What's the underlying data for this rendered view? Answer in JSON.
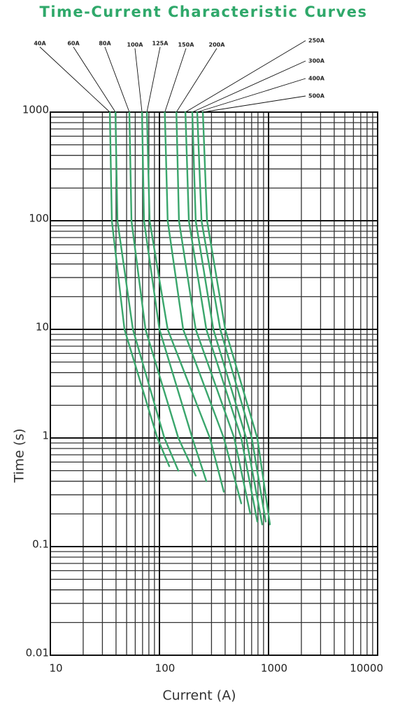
{
  "chart_data": {
    "type": "line",
    "title": "Time-Current Characteristic Curves",
    "x_label": "Current (A)",
    "y_label": "Time (s)",
    "x_scale": "log",
    "y_scale": "log",
    "grid": true,
    "minor_grid": true,
    "xlim": [
      10,
      10000
    ],
    "ylim": [
      0.01,
      1000
    ],
    "xticks": [
      10,
      100,
      1000,
      10000
    ],
    "yticks": [
      1000,
      100,
      10,
      1,
      0.1,
      0.01
    ],
    "series": [
      {
        "name": "40A",
        "color": "#3aa66c",
        "x": [
          35.1,
          36.6,
          47.8,
          95.7,
          123
        ],
        "values": [
          1000,
          100,
          10,
          1,
          0.55
        ]
      },
      {
        "name": "60A",
        "color": "#3aa66c",
        "x": [
          39.5,
          41.2,
          57.1,
          111,
          149
        ],
        "values": [
          1000,
          100,
          10,
          1,
          0.5
        ]
      },
      {
        "name": "80A",
        "color": "#3aa66c",
        "x": [
          53.0,
          55.4,
          74.5,
          149,
          215
        ],
        "values": [
          1000,
          100,
          10,
          1,
          0.45
        ]
      },
      {
        "name": "100A",
        "color": "#3aa66c",
        "x": [
          69.2,
          72.2,
          100,
          200,
          269
        ],
        "values": [
          1000,
          100,
          10,
          1,
          0.4
        ]
      },
      {
        "name": "125A",
        "color": "#3aa66c",
        "x": [
          76.7,
          81.3,
          119,
          290,
          389
        ],
        "values": [
          1000,
          100,
          10,
          1,
          0.32
        ]
      },
      {
        "name": "150A",
        "color": "#3aa66c",
        "x": [
          112,
          119,
          165,
          389,
          562
        ],
        "values": [
          1000,
          100,
          10,
          1,
          0.25
        ]
      },
      {
        "name": "200A",
        "color": "#3aa66c",
        "x": [
          143,
          151,
          215,
          485,
          681
        ],
        "values": [
          1000,
          100,
          10,
          1,
          0.2
        ]
      },
      {
        "name": "250A",
        "color": "#3aa66c",
        "x": [
          173,
          186,
          269,
          562,
          789
        ],
        "values": [
          1000,
          100,
          10,
          1,
          0.17
        ]
      },
      {
        "name": "300A",
        "color": "#3aa66c",
        "x": [
          200,
          215,
          312,
          624,
          875
        ],
        "values": [
          1000,
          100,
          10,
          1,
          0.16
        ]
      },
      {
        "name": "400A",
        "color": "#3aa66c",
        "x": [
          222,
          243,
          361,
          702,
          942
        ],
        "values": [
          1000,
          100,
          10,
          1,
          0.17
        ]
      },
      {
        "name": "500A",
        "color": "#3aa66c",
        "x": [
          250,
          273,
          401,
          789,
          1030
        ],
        "values": [
          1000,
          100,
          10,
          1,
          0.16
        ]
      }
    ]
  }
}
